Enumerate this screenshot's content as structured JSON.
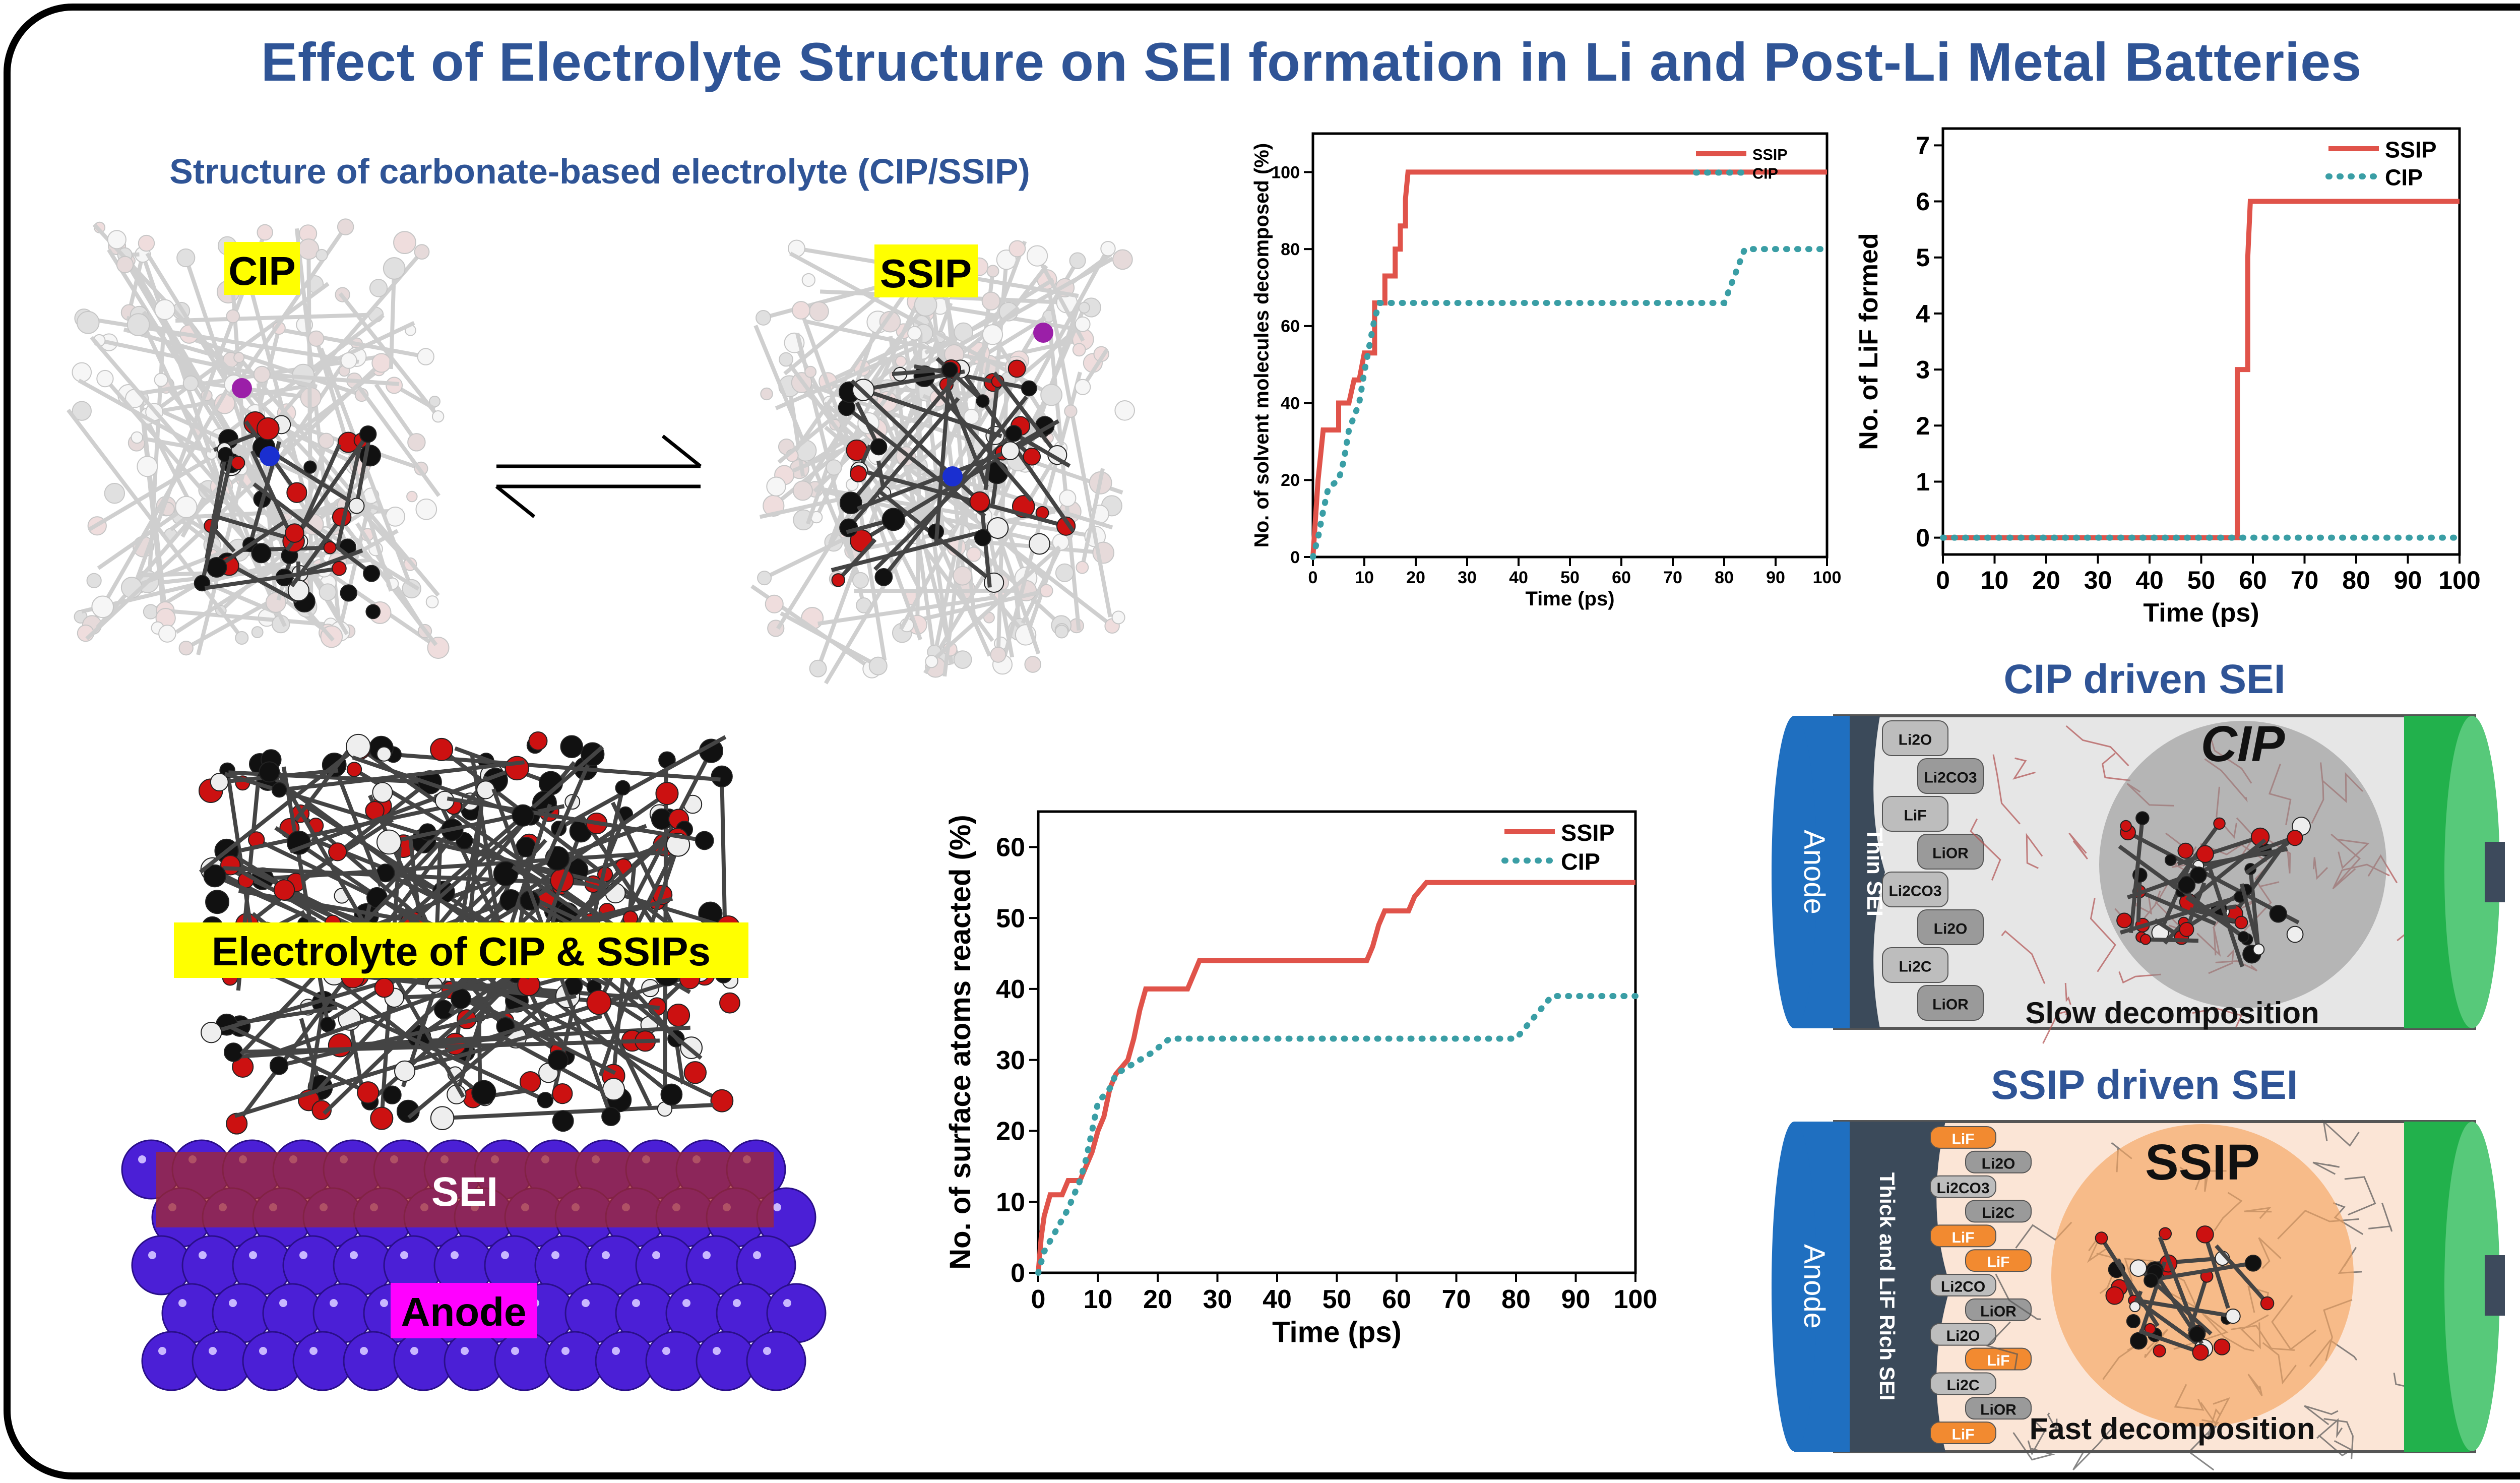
{
  "title": "Effect of Electrolyte Structure on SEI formation in Li and Post-Li Metal Batteries",
  "structure_panel": {
    "heading": "Structure of carbonate-based electrolyte (CIP/SSIP)",
    "cip_label": "CIP",
    "ssip_label": "SSIP"
  },
  "interface_panel": {
    "electrolyte_label": "Electrolyte of CIP & SSIPs",
    "sei_label": "SEI",
    "anode_label": "Anode"
  },
  "sei_schematics": {
    "cip": {
      "heading": "CIP driven SEI",
      "anode": "Anode",
      "layer_label": "Thin SEI",
      "circle_label": "CIP",
      "caption": "Slow decomposition",
      "species": [
        "Li2O",
        "Li2CO3",
        "LiF",
        "LiOR",
        "Li2CO3",
        "Li2O",
        "Li2C",
        "LiOR"
      ]
    },
    "ssip": {
      "heading": "SSIP driven SEI",
      "anode": "Anode",
      "layer_label": "Thick and LiF Rich SEI",
      "circle_label": "SSIP",
      "caption": "Fast decomposition",
      "species": [
        "LiF",
        "Li2O",
        "Li2CO3",
        "Li2C",
        "LiF",
        "LiF",
        "Li2CO",
        "LiOR",
        "Li2O",
        "LiF",
        "Li2C",
        "LiOR",
        "LiF"
      ]
    }
  },
  "colors": {
    "title": "#2f5496",
    "ssip_line": "#e0534a",
    "cip_line": "#3a9ea5",
    "highlight": "#ffff00",
    "anode_blue": "#1f6fc0",
    "cathode_green": "#22b14c",
    "sei_red": "#a52a2a",
    "lif_orange": "#f28a30"
  },
  "chart_data": [
    {
      "type": "line",
      "id": "solvent-decomposed",
      "xlabel": "Time (ps)",
      "ylabel": "No. of solvent molecules decomposed (%)",
      "xlim": [
        0,
        100
      ],
      "ylim": [
        0,
        110
      ],
      "xticks": [
        0,
        10,
        20,
        30,
        40,
        50,
        60,
        70,
        80,
        90,
        100
      ],
      "yticks": [
        0,
        20,
        40,
        60,
        80,
        100
      ],
      "legend": "top-right",
      "series": [
        {
          "name": "SSIP",
          "style": "solid",
          "points": [
            [
              0,
              0
            ],
            [
              0.5,
              10
            ],
            [
              1,
              20
            ],
            [
              2,
              33
            ],
            [
              5,
              33
            ],
            [
              5,
              40
            ],
            [
              7,
              40
            ],
            [
              8,
              46
            ],
            [
              9,
              46
            ],
            [
              10,
              53
            ],
            [
              12,
              53
            ],
            [
              12,
              66
            ],
            [
              14,
              66
            ],
            [
              14,
              73
            ],
            [
              16,
              73
            ],
            [
              16,
              80
            ],
            [
              17,
              80
            ],
            [
              17,
              86
            ],
            [
              18,
              86
            ],
            [
              18,
              93
            ],
            [
              18.5,
              100
            ],
            [
              100,
              100
            ]
          ]
        },
        {
          "name": "CIP",
          "style": "dotted",
          "points": [
            [
              0,
              0
            ],
            [
              1,
              5
            ],
            [
              2,
              12
            ],
            [
              3,
              18
            ],
            [
              5,
              20
            ],
            [
              6,
              25
            ],
            [
              7,
              33
            ],
            [
              9,
              40
            ],
            [
              10,
              48
            ],
            [
              11,
              55
            ],
            [
              12,
              62
            ],
            [
              13,
              66
            ],
            [
              80,
              66
            ],
            [
              82,
              73
            ],
            [
              84,
              80
            ],
            [
              100,
              80
            ]
          ]
        }
      ]
    },
    {
      "type": "line",
      "id": "lif-formed",
      "xlabel": "Time (ps)",
      "ylabel": "No. of LiF formed",
      "xlim": [
        0,
        100
      ],
      "ylim": [
        -0.3,
        7.3
      ],
      "xticks": [
        0,
        10,
        20,
        30,
        40,
        50,
        60,
        70,
        80,
        90,
        100
      ],
      "yticks": [
        0,
        1,
        2,
        3,
        4,
        5,
        6,
        7
      ],
      "legend": "top-right",
      "series": [
        {
          "name": "SSIP",
          "style": "solid",
          "points": [
            [
              0,
              0
            ],
            [
              57,
              0
            ],
            [
              57,
              3
            ],
            [
              59,
              3
            ],
            [
              59,
              5
            ],
            [
              59.5,
              6
            ],
            [
              100,
              6
            ]
          ]
        },
        {
          "name": "CIP",
          "style": "dotted",
          "points": [
            [
              0,
              0
            ],
            [
              100,
              0
            ]
          ]
        }
      ]
    },
    {
      "type": "line",
      "id": "surface-atoms",
      "xlabel": "Time (ps)",
      "ylabel": "No. of surface atoms reacted (%)",
      "xlim": [
        0,
        100
      ],
      "ylim": [
        0,
        65
      ],
      "xticks": [
        0,
        10,
        20,
        30,
        40,
        50,
        60,
        70,
        80,
        90,
        100
      ],
      "yticks": [
        0,
        10,
        20,
        30,
        40,
        50,
        60
      ],
      "legend": "top-right",
      "series": [
        {
          "name": "SSIP",
          "style": "solid",
          "points": [
            [
              0,
              0
            ],
            [
              0.5,
              5
            ],
            [
              1,
              8
            ],
            [
              2,
              11
            ],
            [
              4,
              11
            ],
            [
              5,
              13
            ],
            [
              7,
              13
            ],
            [
              8,
              15
            ],
            [
              9,
              17
            ],
            [
              10,
              20
            ],
            [
              11,
              22
            ],
            [
              12,
              26
            ],
            [
              13,
              28
            ],
            [
              14,
              29
            ],
            [
              15,
              30
            ],
            [
              16,
              33
            ],
            [
              17,
              37
            ],
            [
              18,
              40
            ],
            [
              25,
              40
            ],
            [
              26,
              42
            ],
            [
              27,
              44
            ],
            [
              55,
              44
            ],
            [
              56,
              46
            ],
            [
              57,
              49
            ],
            [
              58,
              51
            ],
            [
              62,
              51
            ],
            [
              63,
              53
            ],
            [
              65,
              55
            ],
            [
              100,
              55
            ]
          ]
        },
        {
          "name": "CIP",
          "style": "dotted",
          "points": [
            [
              0,
              0
            ],
            [
              1,
              3
            ],
            [
              3,
              6
            ],
            [
              5,
              9
            ],
            [
              7,
              13
            ],
            [
              8,
              16
            ],
            [
              9,
              20
            ],
            [
              10,
              24
            ],
            [
              12,
              26
            ],
            [
              13,
              28
            ],
            [
              15,
              29
            ],
            [
              17,
              30
            ],
            [
              19,
              31
            ],
            [
              22,
              33
            ],
            [
              80,
              33
            ],
            [
              82,
              35
            ],
            [
              84,
              37
            ],
            [
              86,
              39
            ],
            [
              100,
              39
            ]
          ]
        }
      ]
    }
  ]
}
